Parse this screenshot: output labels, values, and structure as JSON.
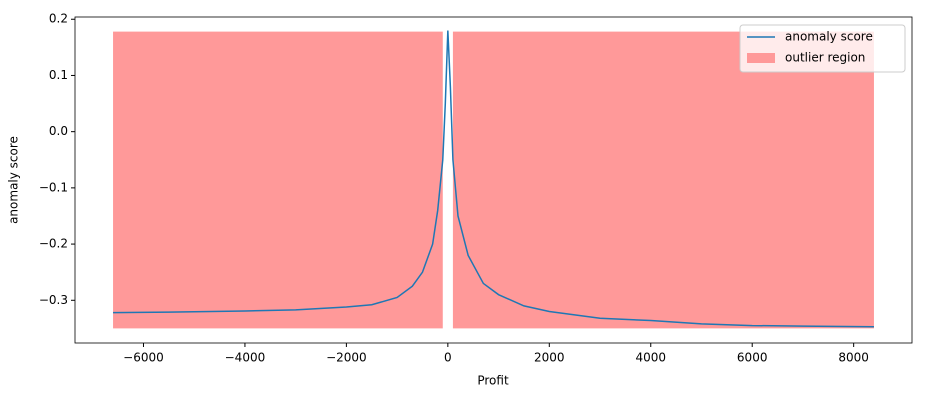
{
  "chart_data": {
    "type": "line",
    "xlabel": "Profit",
    "ylabel": "anomaly score",
    "xlim": [
      -7350,
      9150
    ],
    "ylim": [
      -0.376,
      0.204
    ],
    "xticks": [
      {
        "value": -6000,
        "label": "−6000"
      },
      {
        "value": -4000,
        "label": "−4000"
      },
      {
        "value": -2000,
        "label": "−2000"
      },
      0,
      2000,
      4000,
      6000,
      8000
    ],
    "yticks": [
      {
        "value": -0.3,
        "label": "−0.3"
      },
      {
        "value": -0.2,
        "label": "−0.2"
      },
      {
        "value": -0.1,
        "label": "−0.1"
      },
      {
        "value": 0,
        "label": "0.0"
      },
      0.1,
      0.2
    ],
    "legend": "upper right",
    "series": [
      {
        "name": "anomaly score",
        "color": "#1f77b4",
        "x": [
          -6600,
          -5500,
          -4000,
          -3000,
          -2000,
          -1500,
          -1000,
          -700,
          -500,
          -300,
          -200,
          -100,
          -50,
          0,
          50,
          100,
          200,
          400,
          700,
          1000,
          1500,
          2000,
          3000,
          4000,
          5000,
          6000,
          7000,
          8400
        ],
        "values": [
          -0.322,
          -0.321,
          -0.319,
          -0.317,
          -0.312,
          -0.308,
          -0.295,
          -0.275,
          -0.25,
          -0.2,
          -0.14,
          -0.05,
          0.05,
          0.18,
          0.08,
          -0.05,
          -0.15,
          -0.22,
          -0.27,
          -0.29,
          -0.31,
          -0.32,
          -0.332,
          -0.336,
          -0.342,
          -0.345,
          -0.346,
          -0.347
        ]
      }
    ],
    "fill": {
      "name": "outlier region",
      "color": "#ff9999",
      "ymin": -0.35,
      "ymax": 0.178,
      "ranges": [
        [
          -6600,
          -100
        ],
        [
          100,
          8400
        ]
      ]
    }
  }
}
